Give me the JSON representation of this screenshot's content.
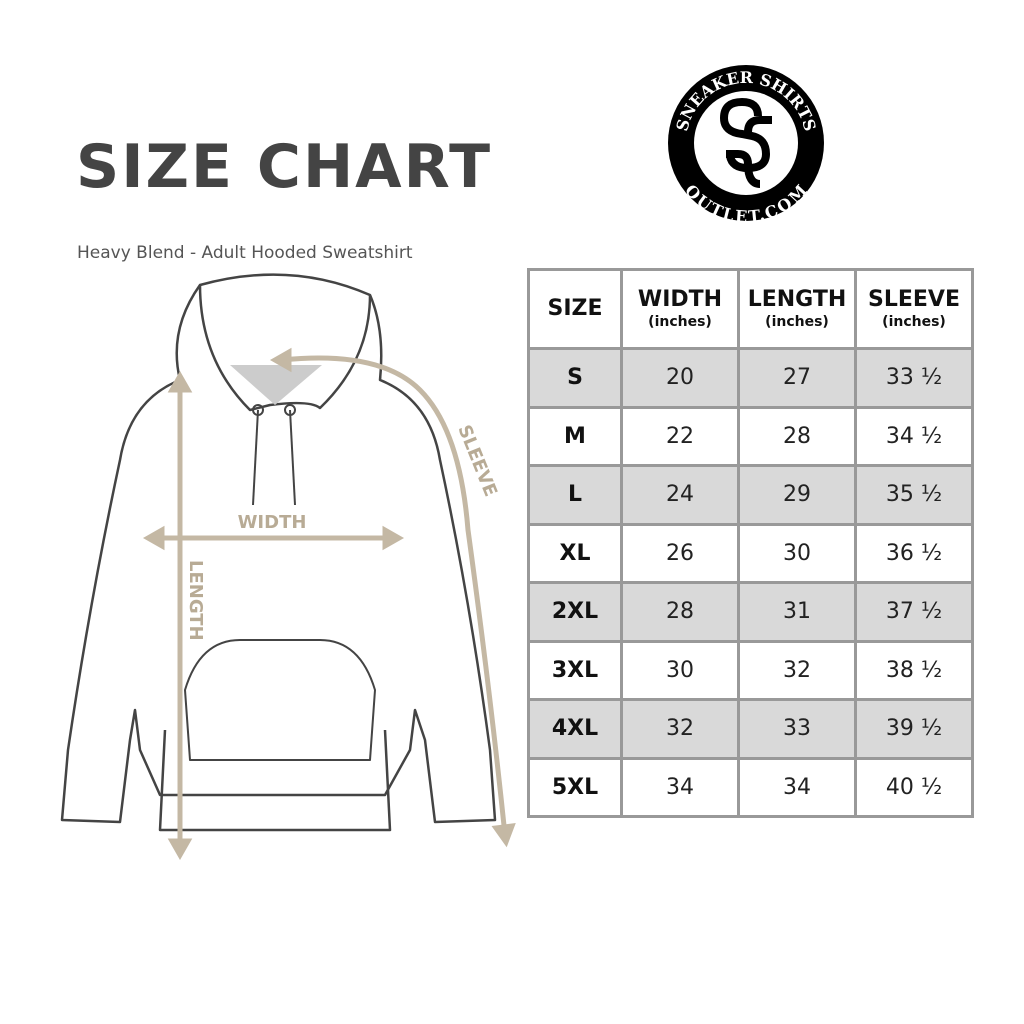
{
  "title": "SIZE CHART",
  "subtitle": "Heavy Blend - Adult Hooded Sweatshirt",
  "logo": {
    "text_top": "SNEAKER SHIRTS",
    "text_bottom": "OUTLET.COM",
    "monogram": "SS"
  },
  "diagram": {
    "labels": {
      "width": "WIDTH",
      "length": "LENGTH",
      "sleeve": "SLEEVE"
    },
    "arrow_color": "#c4b8a4"
  },
  "table": {
    "headers": [
      {
        "label": "SIZE",
        "unit": ""
      },
      {
        "label": "WIDTH",
        "unit": "(inches)"
      },
      {
        "label": "LENGTH",
        "unit": "(inches)"
      },
      {
        "label": "SLEEVE",
        "unit": "(inches)"
      }
    ],
    "rows": [
      [
        "S",
        "20",
        "27",
        "33 ½"
      ],
      [
        "M",
        "22",
        "28",
        "34 ½"
      ],
      [
        "L",
        "24",
        "29",
        "35 ½"
      ],
      [
        "XL",
        "26",
        "30",
        "36 ½"
      ],
      [
        "2XL",
        "28",
        "31",
        "37 ½"
      ],
      [
        "3XL",
        "30",
        "32",
        "38 ½"
      ],
      [
        "4XL",
        "32",
        "33",
        "39 ½"
      ],
      [
        "5XL",
        "34",
        "34",
        "40 ½"
      ]
    ]
  }
}
